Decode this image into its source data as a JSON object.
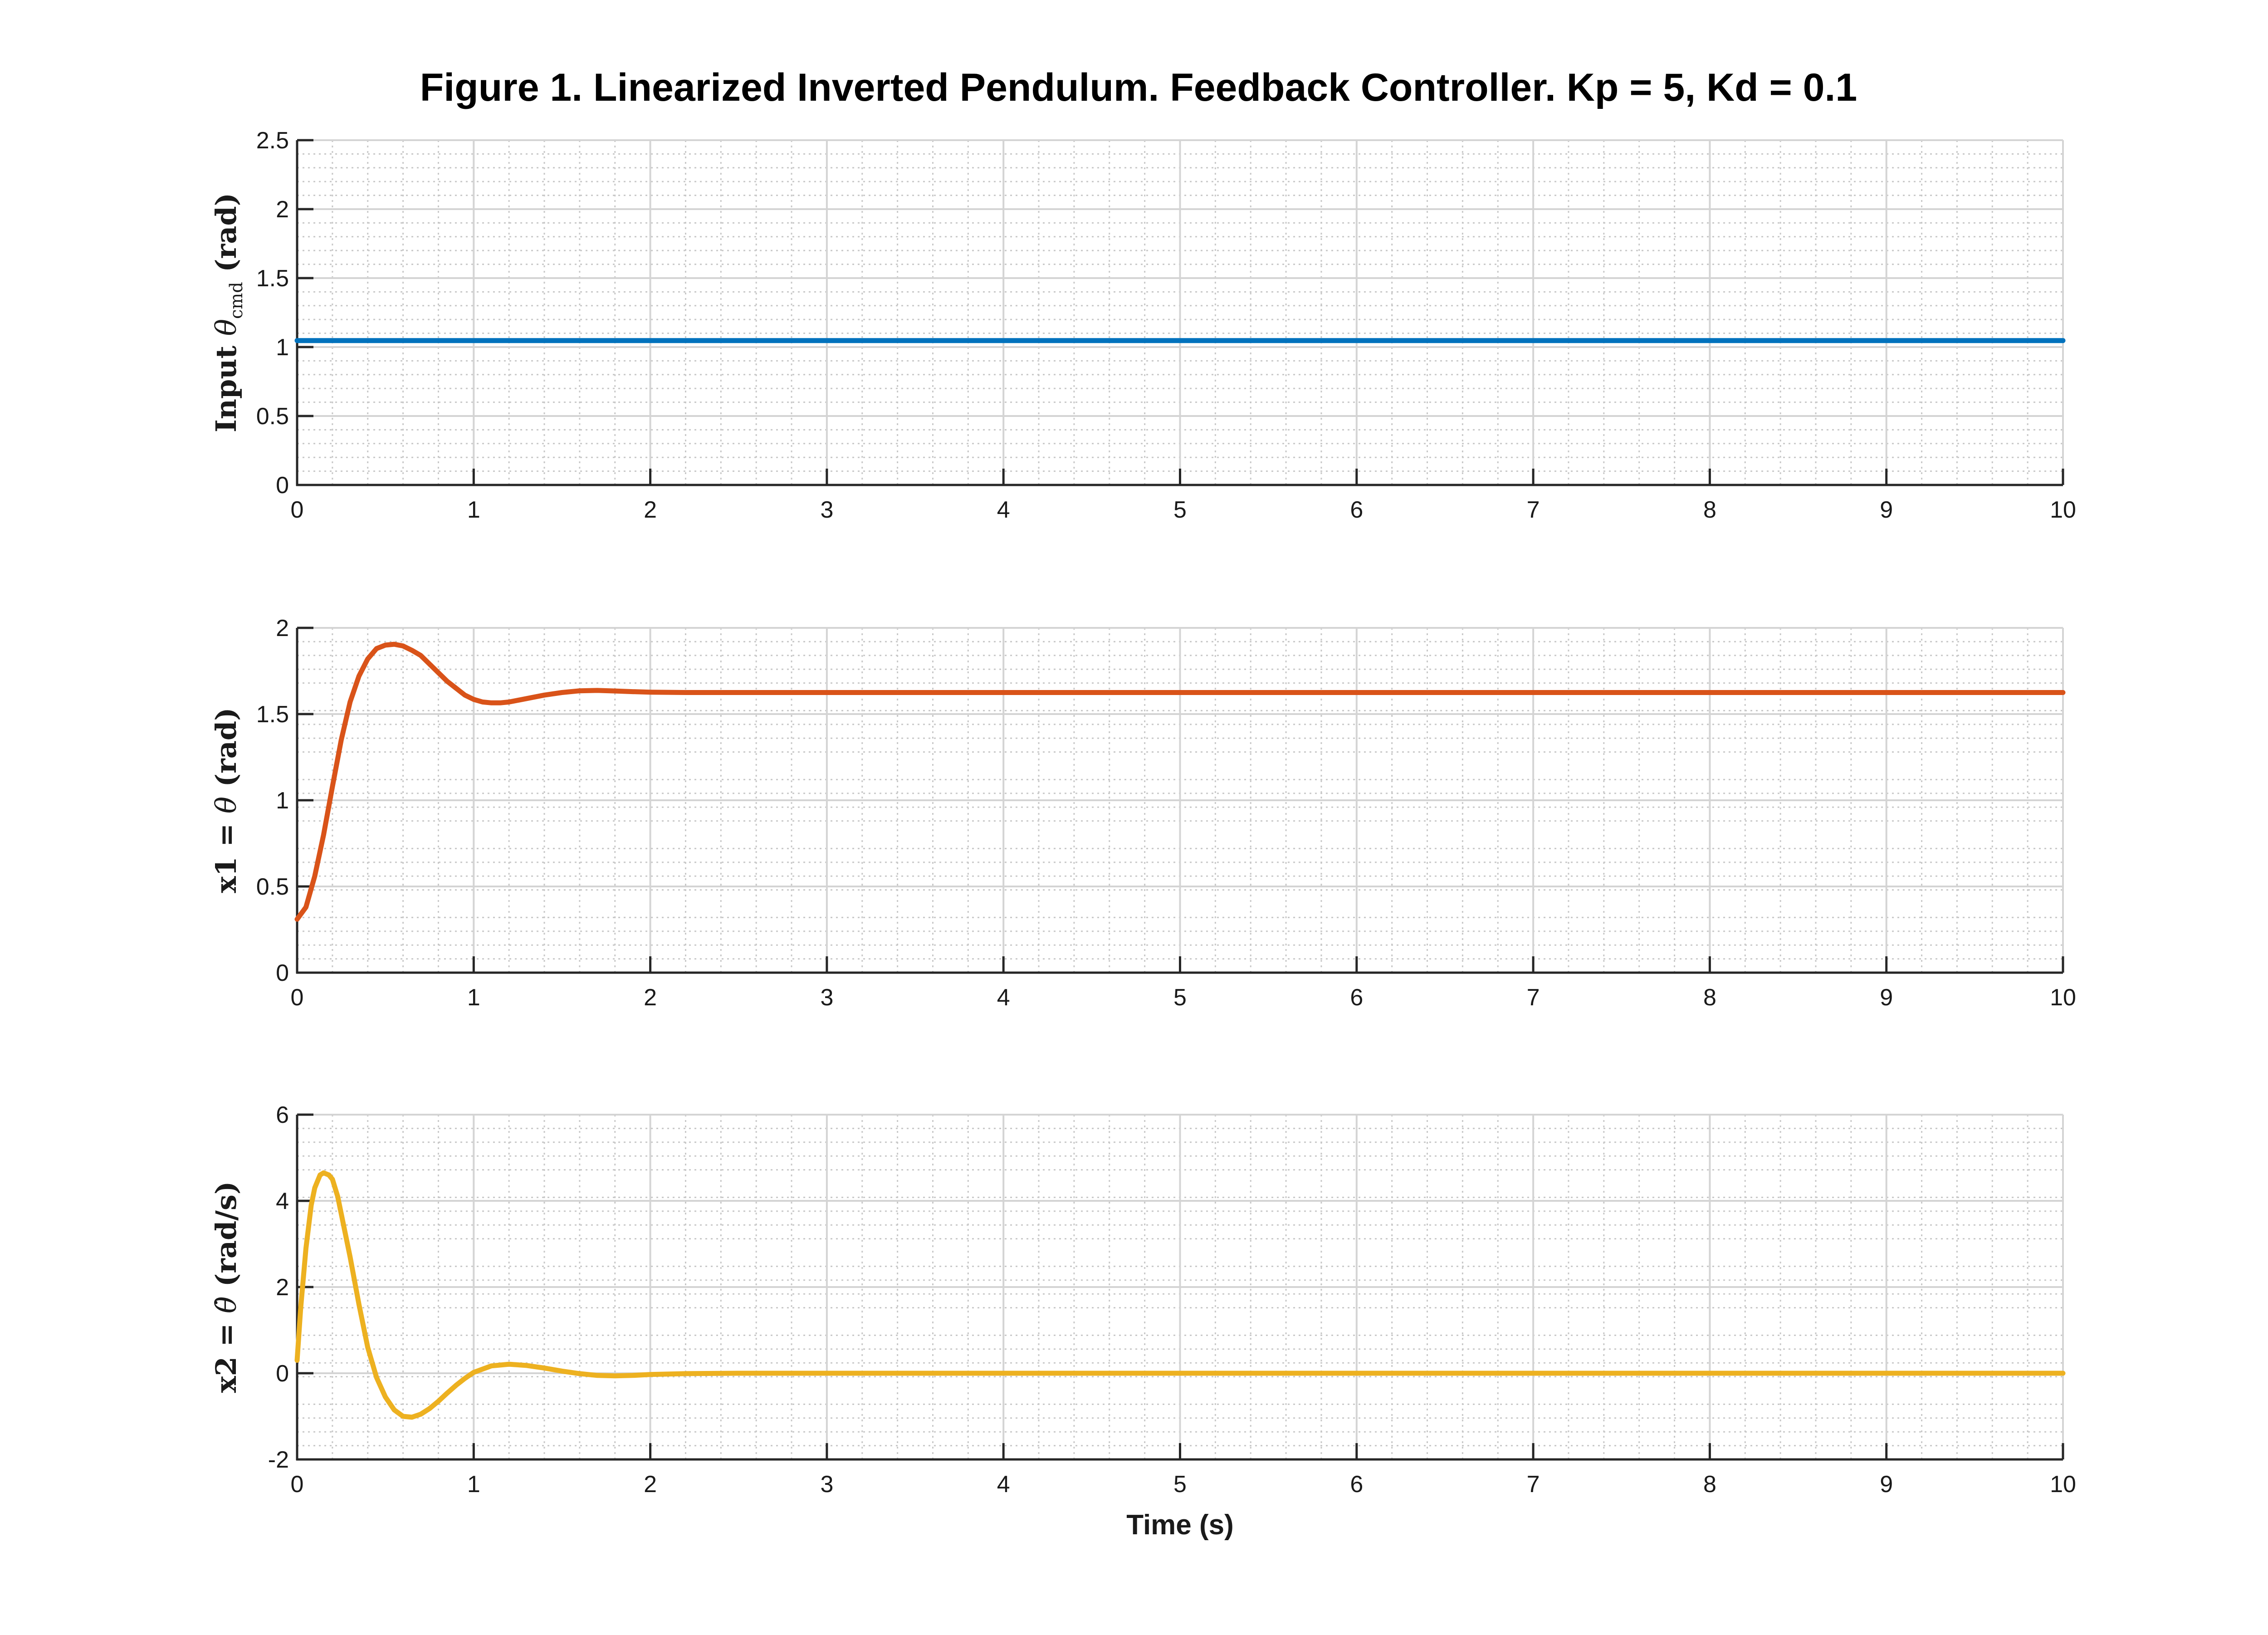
{
  "chart_data": [
    {
      "type": "line",
      "title": "Figure 1. Linearized Inverted Pendulum. Feedback Controller. Kp = 5, Kd = 0.1",
      "xlabel": "",
      "ylabel": {
        "prefix": "Input ",
        "symbol": "θ",
        "subscript": "cmd",
        "suffix": " (rad)"
      },
      "xlim": [
        0,
        10
      ],
      "ylim": [
        0,
        2.5
      ],
      "xticks": [
        "0",
        "1",
        "2",
        "3",
        "4",
        "5",
        "6",
        "7",
        "8",
        "9",
        "10"
      ],
      "yticks": [
        "0",
        "0.5",
        "1",
        "1.5",
        "2",
        "2.5"
      ],
      "grid": true,
      "minor_grid": true,
      "series": [
        {
          "color": "#0072BD",
          "x": [
            0,
            10
          ],
          "y": [
            1.047,
            1.047
          ]
        }
      ]
    },
    {
      "type": "line",
      "xlabel": "",
      "ylabel": {
        "prefix": "x1 = ",
        "symbol": "θ",
        "subscript": "",
        "suffix": " (rad)"
      },
      "xlim": [
        0,
        10
      ],
      "ylim": [
        0,
        2
      ],
      "xticks": [
        "0",
        "1",
        "2",
        "3",
        "4",
        "5",
        "6",
        "7",
        "8",
        "9",
        "10"
      ],
      "yticks": [
        "0",
        "0.5",
        "1",
        "1.5",
        "2"
      ],
      "grid": true,
      "minor_grid": true,
      "series": [
        {
          "color": "#D95319",
          "x": [
            0,
            0.05,
            0.1,
            0.15,
            0.2,
            0.25,
            0.3,
            0.35,
            0.4,
            0.45,
            0.5,
            0.55,
            0.6,
            0.65,
            0.7,
            0.75,
            0.8,
            0.85,
            0.9,
            0.95,
            1.0,
            1.05,
            1.1,
            1.15,
            1.2,
            1.3,
            1.4,
            1.5,
            1.6,
            1.7,
            1.8,
            1.9,
            2.0,
            2.2,
            2.5,
            3,
            4,
            5,
            6,
            7,
            8,
            9,
            10
          ],
          "y": [
            0.31,
            0.38,
            0.56,
            0.8,
            1.08,
            1.35,
            1.57,
            1.72,
            1.82,
            1.88,
            1.9,
            1.905,
            1.895,
            1.87,
            1.84,
            1.79,
            1.74,
            1.69,
            1.65,
            1.61,
            1.585,
            1.57,
            1.565,
            1.565,
            1.57,
            1.59,
            1.61,
            1.625,
            1.635,
            1.637,
            1.634,
            1.63,
            1.627,
            1.625,
            1.625,
            1.625,
            1.625,
            1.625,
            1.625,
            1.625,
            1.625,
            1.625,
            1.625
          ]
        }
      ]
    },
    {
      "type": "line",
      "xlabel": "Time (s)",
      "ylabel": {
        "prefix": "x2 = ",
        "symbol": "θ̇",
        "subscript": "",
        "suffix": " (rad/s)"
      },
      "xlim": [
        0,
        10
      ],
      "ylim": [
        -2,
        6
      ],
      "xticks": [
        "0",
        "1",
        "2",
        "3",
        "4",
        "5",
        "6",
        "7",
        "8",
        "9",
        "10"
      ],
      "yticks": [
        "-2",
        "0",
        "2",
        "4",
        "6"
      ],
      "grid": true,
      "minor_grid": true,
      "series": [
        {
          "color": "#EDB120",
          "x": [
            0,
            0.02,
            0.05,
            0.08,
            0.1,
            0.13,
            0.15,
            0.18,
            0.2,
            0.23,
            0.26,
            0.3,
            0.35,
            0.4,
            0.45,
            0.5,
            0.55,
            0.6,
            0.65,
            0.7,
            0.75,
            0.8,
            0.85,
            0.9,
            0.95,
            1.0,
            1.1,
            1.2,
            1.3,
            1.4,
            1.5,
            1.6,
            1.7,
            1.8,
            1.9,
            2.0,
            2.2,
            2.5,
            3,
            4,
            5,
            6,
            7,
            8,
            9,
            10
          ],
          "y": [
            0.3,
            1.5,
            2.9,
            3.9,
            4.3,
            4.6,
            4.65,
            4.6,
            4.5,
            4.1,
            3.5,
            2.7,
            1.6,
            0.6,
            -0.1,
            -0.55,
            -0.85,
            -1.0,
            -1.02,
            -0.95,
            -0.82,
            -0.65,
            -0.46,
            -0.28,
            -0.12,
            0.02,
            0.17,
            0.21,
            0.18,
            0.12,
            0.05,
            -0.01,
            -0.05,
            -0.06,
            -0.05,
            -0.03,
            -0.01,
            0.0,
            0.0,
            0.0,
            0.0,
            0.0,
            0.0,
            0.0,
            0.0,
            0.0
          ]
        }
      ]
    }
  ]
}
